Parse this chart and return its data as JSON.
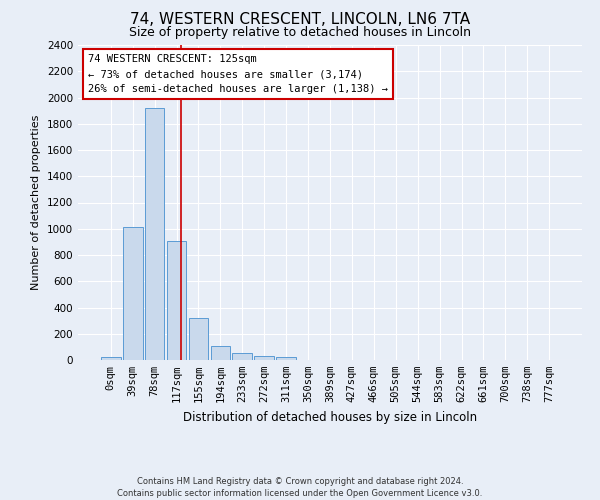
{
  "title1": "74, WESTERN CRESCENT, LINCOLN, LN6 7TA",
  "title2": "Size of property relative to detached houses in Lincoln",
  "xlabel": "Distribution of detached houses by size in Lincoln",
  "ylabel": "Number of detached properties",
  "footnote": "Contains HM Land Registry data © Crown copyright and database right 2024.\nContains public sector information licensed under the Open Government Licence v3.0.",
  "bar_labels": [
    "0sqm",
    "39sqm",
    "78sqm",
    "117sqm",
    "155sqm",
    "194sqm",
    "233sqm",
    "272sqm",
    "311sqm",
    "350sqm",
    "389sqm",
    "427sqm",
    "466sqm",
    "505sqm",
    "544sqm",
    "583sqm",
    "622sqm",
    "661sqm",
    "700sqm",
    "738sqm",
    "777sqm"
  ],
  "bar_values": [
    20,
    1010,
    1920,
    910,
    320,
    110,
    50,
    30,
    25,
    0,
    0,
    0,
    0,
    0,
    0,
    0,
    0,
    0,
    0,
    0,
    0
  ],
  "bar_color": "#c9d9ec",
  "bar_edge_color": "#5b9bd5",
  "ylim": [
    0,
    2400
  ],
  "yticks": [
    0,
    200,
    400,
    600,
    800,
    1000,
    1200,
    1400,
    1600,
    1800,
    2000,
    2200,
    2400
  ],
  "vline_x": 3.21,
  "vline_color": "#cc0000",
  "annotation_text": "74 WESTERN CRESCENT: 125sqm\n← 73% of detached houses are smaller (3,174)\n26% of semi-detached houses are larger (1,138) →",
  "background_color": "#e8eef7",
  "grid_color": "#ffffff",
  "title1_fontsize": 11,
  "title2_fontsize": 9,
  "ylabel_fontsize": 8,
  "xlabel_fontsize": 8.5,
  "tick_fontsize": 7.5,
  "annot_fontsize": 7.5,
  "footnote_fontsize": 6
}
